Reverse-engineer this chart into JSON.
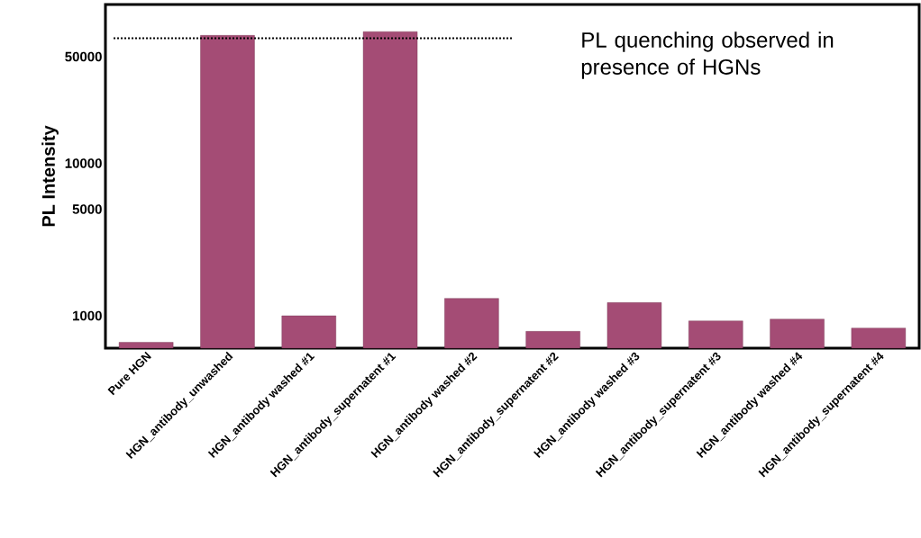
{
  "chart_data": {
    "type": "bar",
    "ylabel": "PL Intensity",
    "categories": [
      "Pure HGN",
      "HGN_antibody_unwashed",
      "HGN_antibody washed #1",
      "HGN_antibody_supernatent #1",
      "HGN_antibody washed #2",
      "HGN_antibody_supernatent #2",
      "HGN_antibody washed #3",
      "HGN_antibody_supernatent #3",
      "HGN_antibody washed #4",
      "HGN_antibody_supernatent #4"
    ],
    "values": [
      670,
      69000,
      1000,
      73000,
      1300,
      790,
      1220,
      925,
      950,
      830
    ],
    "color": "#a44c75",
    "log": true,
    "ylim": [
      613,
      110000
    ],
    "yticks": [
      1000,
      5000,
      10000,
      50000
    ],
    "grid": false,
    "ref_lines": [
      {
        "axis": "y",
        "value": 66000,
        "line_style": "dotted",
        "color": "#000000"
      }
    ],
    "annotations": [
      "PL quenching observed in presence of HGNs"
    ]
  }
}
